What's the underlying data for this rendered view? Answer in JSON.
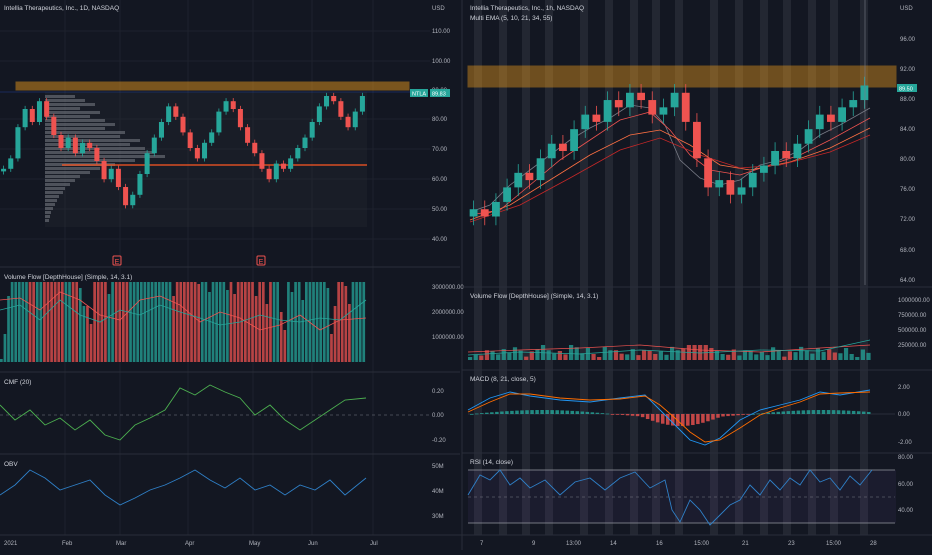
{
  "colors": {
    "bg": "#131722",
    "grid": "#1e222d",
    "text": "#b2b5be",
    "up": "#26a69a",
    "down": "#ef5350",
    "zone": "#f7a21b",
    "line": "#ff5722",
    "blue": "#2962ff"
  },
  "left": {
    "title": "Intellia Therapeutics, Inc., 1D, NASDAQ",
    "currency": "USD",
    "ticker_tag": "NTLA",
    "last_price": "89.83",
    "price_ticks": [
      "110.00",
      "100.00",
      "90.00",
      "80.00",
      "70.00",
      "60.00",
      "50.00",
      "40.00"
    ],
    "volume_label": "Volume Flow [DepthHouse] (Simple, 14, 3.1)",
    "volume_ticks": [
      "3000000.00",
      "2000000.00",
      "1000000.00"
    ],
    "cmf_label": "CMF (20)",
    "cmf_ticks": [
      "0.20",
      "0.00",
      "-0.20"
    ],
    "obv_label": "OBV",
    "obv_ticks": [
      "50M",
      "40M",
      "30M"
    ],
    "time_labels": [
      "2021",
      "Feb",
      "Mar",
      "Apr",
      "May",
      "Jun",
      "Jul"
    ],
    "earnings_marker": "E"
  },
  "right": {
    "title": "Intellia Therapeutics, Inc., 1h, NASDAQ",
    "ema_label": "Multi EMA (5, 10, 21, 34, 55)",
    "currency": "USD",
    "last_price": "89.50",
    "price_ticks": [
      "96.00",
      "92.00",
      "88.00",
      "84.00",
      "80.00",
      "76.00",
      "72.00",
      "68.00",
      "64.00"
    ],
    "volume_label": "Volume Flow [DepthHouse] (Simple, 14, 3.1)",
    "volume_ticks": [
      "1000000.00",
      "750000.00",
      "500000.00",
      "250000.00"
    ],
    "macd_label": "MACD (8, 21, close, 5)",
    "macd_ticks": [
      "2.00",
      "0.00",
      "-2.00"
    ],
    "rsi_label": "RSI (14, close)",
    "rsi_ticks": [
      "80.00",
      "60.00",
      "40.00"
    ],
    "time_labels": [
      "7",
      "9",
      "13:00",
      "14",
      "16",
      "15:00",
      "21",
      "23",
      "15:00",
      "28"
    ]
  },
  "chart_data": [
    {
      "type": "candlestick",
      "title": "Intellia Therapeutics, Inc., 1D, NASDAQ",
      "ylim": [
        35,
        115
      ],
      "resistance_zone": [
        89.5,
        92
      ],
      "support_line": 64.5,
      "close": [
        62,
        66,
        78,
        85,
        80,
        88,
        82,
        75,
        70,
        74,
        68,
        72,
        70,
        65,
        58,
        62,
        55,
        48,
        52,
        60,
        68,
        74,
        80,
        86,
        82,
        76,
        70,
        66,
        72,
        76,
        84,
        88,
        85,
        78,
        72,
        68,
        62,
        58,
        64,
        62,
        66,
        70,
        74,
        80,
        86,
        90,
        88,
        82,
        78,
        84,
        90
      ]
    },
    {
      "type": "candlestick",
      "title": "Intellia Therapeutics, Inc., 1h, NASDAQ",
      "series_label": "Multi EMA (5, 10, 21, 34, 55)",
      "ylim": [
        63,
        99
      ],
      "resistance_zone": [
        89.5,
        92.5
      ],
      "close": [
        73,
        72,
        74,
        76,
        78,
        77,
        80,
        82,
        81,
        84,
        86,
        85,
        88,
        87,
        89,
        88,
        86,
        87,
        89,
        85,
        80,
        76,
        77,
        75,
        76,
        78,
        79,
        81,
        80,
        82,
        84,
        86,
        85,
        87,
        88,
        90
      ]
    }
  ]
}
